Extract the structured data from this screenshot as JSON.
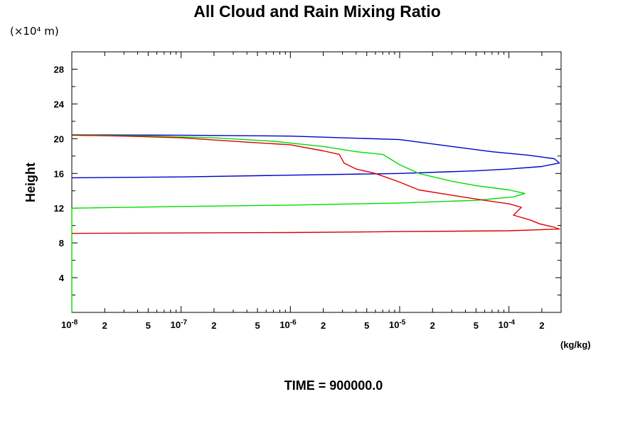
{
  "chart_data": {
    "type": "line",
    "title": "All Cloud and Rain Mixing Ratio",
    "y_unit": "(×10⁴ m)",
    "ylabel": "Height",
    "xlabel": "(kg/kg)",
    "footer": "TIME = 900000.0",
    "x_scale": "log",
    "xlim": [
      1e-08,
      0.0003
    ],
    "ylim": [
      0,
      30
    ],
    "y_ticks": [
      {
        "value": 4,
        "label": "4"
      },
      {
        "value": 8,
        "label": "8"
      },
      {
        "value": 12,
        "label": "12"
      },
      {
        "value": 16,
        "label": "16"
      },
      {
        "value": 20,
        "label": "20"
      },
      {
        "value": 24,
        "label": "24"
      },
      {
        "value": 28,
        "label": "28"
      }
    ],
    "x_decade_labels": [
      {
        "value": 1e-08,
        "base": "10",
        "exp": "-8"
      },
      {
        "value": 1e-07,
        "base": "10",
        "exp": "-7"
      },
      {
        "value": 1e-06,
        "base": "10",
        "exp": "-6"
      },
      {
        "value": 1e-05,
        "base": "10",
        "exp": "-5"
      },
      {
        "value": 0.0001,
        "base": "10",
        "exp": "-4"
      }
    ],
    "x_minor_labels": [
      {
        "value": 2e-08,
        "label": "2"
      },
      {
        "value": 5e-08,
        "label": "5"
      },
      {
        "value": 2e-07,
        "label": "2"
      },
      {
        "value": 5e-07,
        "label": "5"
      },
      {
        "value": 2e-06,
        "label": "2"
      },
      {
        "value": 5e-06,
        "label": "5"
      },
      {
        "value": 2e-05,
        "label": "2"
      },
      {
        "value": 5e-05,
        "label": "5"
      },
      {
        "value": 0.0002,
        "label": "2"
      }
    ],
    "series": [
      {
        "color": "#0000cc",
        "points": [
          [
            1e-08,
            15.5
          ],
          [
            1e-07,
            15.6
          ],
          [
            1e-06,
            15.8
          ],
          [
            1e-05,
            16.0
          ],
          [
            5e-05,
            16.3
          ],
          [
            0.0001,
            16.5
          ],
          [
            0.0002,
            16.8
          ],
          [
            0.00029,
            17.2
          ],
          [
            0.00026,
            17.7
          ],
          [
            0.00015,
            18.1
          ],
          [
            7e-05,
            18.5
          ],
          [
            3e-05,
            19.1
          ],
          [
            1e-05,
            19.9
          ],
          [
            1e-06,
            20.3
          ],
          [
            1e-07,
            20.4
          ],
          [
            1e-08,
            20.45
          ]
        ]
      },
      {
        "color": "#00dd00",
        "points": [
          [
            1e-08,
            0
          ],
          [
            1e-08,
            12.0
          ],
          [
            1e-07,
            12.2
          ],
          [
            1e-06,
            12.35
          ],
          [
            1e-05,
            12.6
          ],
          [
            5e-05,
            12.9
          ],
          [
            0.00011,
            13.3
          ],
          [
            0.00014,
            13.7
          ],
          [
            0.0001,
            14.1
          ],
          [
            5e-05,
            14.6
          ],
          [
            3e-05,
            15.1
          ],
          [
            1.5e-05,
            16.0
          ],
          [
            1e-05,
            17.0
          ],
          [
            7e-06,
            18.2
          ],
          [
            4e-06,
            18.5
          ],
          [
            2e-06,
            19.1
          ],
          [
            7e-07,
            19.7
          ],
          [
            2e-07,
            20.1
          ],
          [
            5e-08,
            20.3
          ],
          [
            1e-08,
            20.45
          ]
        ]
      },
      {
        "color": "#dd0000",
        "points": [
          [
            1e-08,
            9.1
          ],
          [
            1e-06,
            9.2
          ],
          [
            1e-05,
            9.3
          ],
          [
            0.0001,
            9.4
          ],
          [
            0.00029,
            9.6
          ],
          [
            0.00026,
            9.8
          ],
          [
            0.00019,
            10.2
          ],
          [
            0.00016,
            10.6
          ],
          [
            0.00011,
            11.2
          ],
          [
            0.00013,
            12.1
          ],
          [
            0.0001,
            12.5
          ],
          [
            6e-05,
            12.9
          ],
          [
            3e-05,
            13.5
          ],
          [
            1.5e-05,
            14.1
          ],
          [
            1e-05,
            15.0
          ],
          [
            6e-06,
            16.0
          ],
          [
            4e-06,
            16.5
          ],
          [
            3.1e-06,
            17.2
          ],
          [
            2.8e-06,
            18.2
          ],
          [
            2e-06,
            18.6
          ],
          [
            1e-06,
            19.3
          ],
          [
            4e-07,
            19.6
          ],
          [
            1e-07,
            20.1
          ],
          [
            3e-08,
            20.3
          ],
          [
            1e-08,
            20.4
          ]
        ]
      }
    ]
  }
}
